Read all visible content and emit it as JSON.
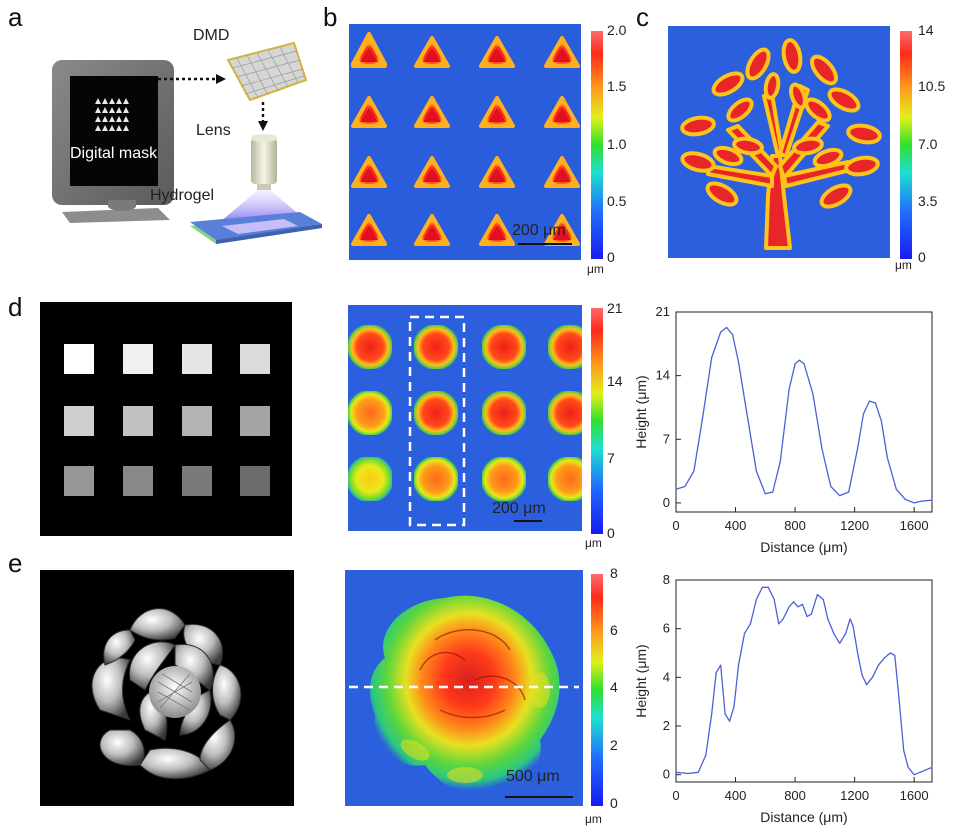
{
  "panels": {
    "a": {
      "label": "a",
      "dmd_label": "DMD",
      "lens_label": "Lens",
      "hydrogel_label": "Hydrogel",
      "mask_label": "Digital mask"
    },
    "b": {
      "label": "b",
      "scale_bar": "200 μm",
      "unit": "μm",
      "colorbar_ticks": [
        "2.0",
        "1.5",
        "1.0",
        "0.5",
        "0"
      ]
    },
    "c": {
      "label": "c",
      "unit": "μm",
      "colorbar_ticks": [
        "14",
        "10.5",
        "7.0",
        "3.5",
        "0"
      ]
    },
    "d": {
      "label": "d",
      "scale_bar": "200 μm",
      "unit": "μm",
      "colorbar_ticks": [
        "21",
        "14",
        "7",
        "0"
      ]
    },
    "e": {
      "label": "e",
      "scale_bar": "500 μm",
      "unit": "μm",
      "colorbar_ticks": [
        "8",
        "6",
        "4",
        "2",
        "0"
      ]
    }
  },
  "chart_data": [
    {
      "type": "line",
      "panel": "d",
      "xlabel": "Distance (μm)",
      "ylabel": "Height (μm)",
      "xlim": [
        0,
        1720
      ],
      "ylim": [
        -1,
        21
      ],
      "xticks": [
        "0",
        "400",
        "800",
        "1200",
        "1600"
      ],
      "yticks": [
        "0",
        "7",
        "14",
        "21"
      ],
      "color": "#4a62d8",
      "x": [
        0,
        60,
        120,
        180,
        240,
        300,
        340,
        380,
        420,
        480,
        540,
        600,
        650,
        700,
        760,
        800,
        830,
        860,
        920,
        980,
        1040,
        1100,
        1160,
        1220,
        1260,
        1300,
        1340,
        1380,
        1420,
        1480,
        1540,
        1600,
        1650,
        1720
      ],
      "y": [
        1.5,
        1.8,
        3.5,
        9.5,
        16.0,
        18.8,
        19.3,
        18.5,
        15.5,
        9.5,
        3.5,
        1.0,
        1.2,
        4.5,
        12.5,
        15.3,
        15.7,
        15.3,
        12.0,
        6.0,
        1.8,
        0.8,
        1.2,
        6.0,
        9.8,
        11.2,
        11.0,
        9.0,
        5.0,
        1.5,
        0.4,
        0.0,
        0.2,
        0.3
      ]
    },
    {
      "type": "line",
      "panel": "e",
      "xlabel": "Distance (μm)",
      "ylabel": "Height (μm)",
      "xlim": [
        0,
        1720
      ],
      "ylim": [
        -0.3,
        8
      ],
      "xticks": [
        "0",
        "400",
        "800",
        "1200",
        "1600"
      ],
      "yticks": [
        "0",
        "2",
        "4",
        "6",
        "8"
      ],
      "color": "#4a62d8",
      "x": [
        0,
        80,
        150,
        200,
        240,
        270,
        300,
        330,
        360,
        390,
        420,
        460,
        500,
        540,
        580,
        620,
        660,
        690,
        720,
        760,
        790,
        820,
        850,
        880,
        910,
        950,
        990,
        1020,
        1060,
        1100,
        1140,
        1170,
        1190,
        1220,
        1250,
        1280,
        1320,
        1360,
        1400,
        1440,
        1470,
        1500,
        1530,
        1560,
        1600,
        1640,
        1680,
        1720
      ],
      "y": [
        0.1,
        0.05,
        0.1,
        0.8,
        2.5,
        4.2,
        4.5,
        2.5,
        2.2,
        2.8,
        4.5,
        5.8,
        6.2,
        7.2,
        7.7,
        7.7,
        7.2,
        6.2,
        6.4,
        6.9,
        7.1,
        6.9,
        7.0,
        6.5,
        6.6,
        7.4,
        7.2,
        6.4,
        5.8,
        5.4,
        5.8,
        6.4,
        6.1,
        5.0,
        4.1,
        3.7,
        4.0,
        4.5,
        4.8,
        5.0,
        4.9,
        3.0,
        1.0,
        0.3,
        0.0,
        0.1,
        0.2,
        0.3
      ]
    }
  ]
}
